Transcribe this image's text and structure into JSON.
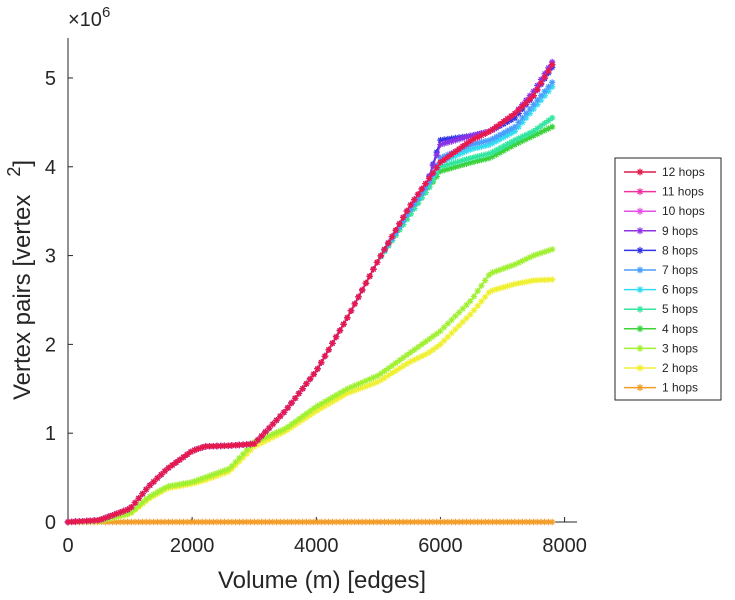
{
  "chart_data": {
    "type": "line",
    "title": "",
    "xlabel": "Volume (m) [edges]",
    "ylabel": "Vertex pairs [vertex",
    "ylabel_superscript": "2",
    "ylabel_close": "]",
    "y_exponent_prefix": "×10",
    "y_exponent": "6",
    "xlim": [
      0,
      8200
    ],
    "ylim": [
      0,
      5.45
    ],
    "xticks": [
      0,
      2000,
      4000,
      6000,
      8000
    ],
    "xtick_labels": [
      "0",
      "2000",
      "4000",
      "6000",
      "8000"
    ],
    "yticks": [
      0,
      1,
      2,
      3,
      4,
      5
    ],
    "ytick_labels": [
      "0",
      "1",
      "2",
      "3",
      "4",
      "5"
    ],
    "grid": false,
    "legend_position": "right",
    "x": [
      0,
      500,
      1000,
      1300,
      1600,
      2000,
      2200,
      2600,
      3000,
      3500,
      4000,
      4500,
      5000,
      5500,
      5800,
      6000,
      6500,
      6800,
      7200,
      7500,
      7800
    ],
    "series": [
      {
        "name": "12 hops",
        "color": "#e6194b",
        "values": [
          0,
          0.02,
          0.15,
          0.4,
          0.6,
          0.8,
          0.85,
          0.86,
          0.88,
          1.25,
          1.7,
          2.3,
          2.95,
          3.55,
          3.85,
          4.05,
          4.3,
          4.4,
          4.6,
          4.8,
          5.15
        ]
      },
      {
        "name": "11 hops",
        "color": "#f032a0",
        "values": [
          0,
          0.02,
          0.15,
          0.4,
          0.6,
          0.8,
          0.85,
          0.86,
          0.88,
          1.25,
          1.7,
          2.3,
          2.95,
          3.55,
          3.85,
          4.05,
          4.3,
          4.4,
          4.6,
          4.8,
          5.15
        ]
      },
      {
        "name": "10 hops",
        "color": "#e64ee6",
        "values": [
          0,
          0.02,
          0.15,
          0.4,
          0.6,
          0.8,
          0.85,
          0.86,
          0.88,
          1.25,
          1.7,
          2.3,
          2.95,
          3.55,
          3.85,
          4.05,
          4.3,
          4.4,
          4.6,
          4.8,
          5.15
        ]
      },
      {
        "name": "9 hops",
        "color": "#8c32e6",
        "values": [
          0,
          0.02,
          0.15,
          0.4,
          0.6,
          0.8,
          0.85,
          0.86,
          0.88,
          1.25,
          1.7,
          2.3,
          2.95,
          3.55,
          3.85,
          4.25,
          4.35,
          4.4,
          4.6,
          4.85,
          5.18
        ]
      },
      {
        "name": "8 hops",
        "color": "#3232e6",
        "values": [
          0,
          0.02,
          0.15,
          0.4,
          0.6,
          0.8,
          0.85,
          0.86,
          0.88,
          1.25,
          1.7,
          2.3,
          2.95,
          3.55,
          3.85,
          4.3,
          4.35,
          4.4,
          4.55,
          4.8,
          5.12
        ]
      },
      {
        "name": "7 hops",
        "color": "#4a9eff",
        "values": [
          0,
          0.02,
          0.15,
          0.4,
          0.6,
          0.8,
          0.85,
          0.86,
          0.88,
          1.25,
          1.7,
          2.3,
          2.95,
          3.5,
          3.8,
          4.1,
          4.25,
          4.3,
          4.45,
          4.7,
          4.95
        ]
      },
      {
        "name": "6 hops",
        "color": "#32dcf0",
        "values": [
          0,
          0.02,
          0.15,
          0.4,
          0.6,
          0.8,
          0.85,
          0.86,
          0.88,
          1.25,
          1.7,
          2.3,
          2.95,
          3.5,
          3.8,
          4.05,
          4.2,
          4.25,
          4.4,
          4.65,
          4.9
        ]
      },
      {
        "name": "5 hops",
        "color": "#32e6a0",
        "values": [
          0,
          0.02,
          0.15,
          0.4,
          0.6,
          0.8,
          0.85,
          0.86,
          0.88,
          1.25,
          1.7,
          2.3,
          2.95,
          3.45,
          3.75,
          4.0,
          4.1,
          4.15,
          4.3,
          4.4,
          4.55
        ]
      },
      {
        "name": "4 hops",
        "color": "#3cd23c",
        "values": [
          0,
          0.02,
          0.15,
          0.4,
          0.6,
          0.8,
          0.85,
          0.86,
          0.88,
          1.25,
          1.7,
          2.3,
          2.95,
          3.45,
          3.75,
          3.95,
          4.05,
          4.1,
          4.25,
          4.35,
          4.45
        ]
      },
      {
        "name": "3 hops",
        "color": "#a0f032",
        "values": [
          0,
          0.01,
          0.1,
          0.28,
          0.4,
          0.45,
          0.5,
          0.6,
          0.9,
          1.05,
          1.3,
          1.5,
          1.65,
          1.9,
          2.05,
          2.15,
          2.5,
          2.8,
          2.9,
          3.0,
          3.07
        ]
      },
      {
        "name": "2 hops",
        "color": "#f0f032",
        "values": [
          0,
          0.01,
          0.09,
          0.26,
          0.38,
          0.43,
          0.47,
          0.57,
          0.85,
          1.02,
          1.25,
          1.45,
          1.58,
          1.8,
          1.9,
          2.0,
          2.35,
          2.6,
          2.68,
          2.72,
          2.73
        ]
      },
      {
        "name": "1 hops",
        "color": "#f39c28",
        "values": [
          0,
          0,
          0,
          0,
          0,
          0,
          0,
          0,
          0,
          0,
          0,
          0,
          0,
          0,
          0,
          0,
          0,
          0,
          0,
          0,
          0
        ]
      }
    ]
  }
}
